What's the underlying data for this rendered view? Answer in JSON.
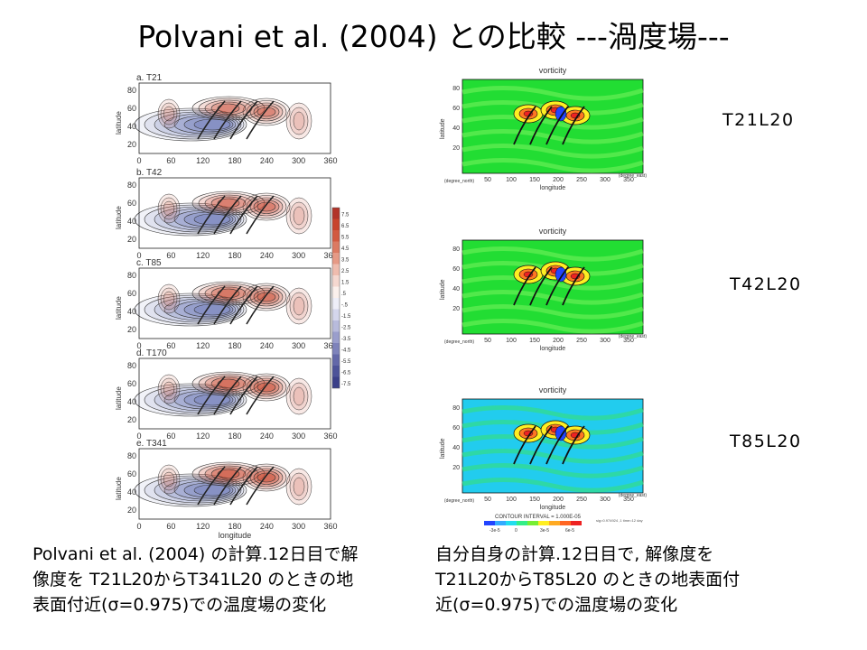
{
  "title": "Polvani et al. (2004) との比較 ---渦度場---",
  "left_figure": {
    "panels": [
      {
        "label": "a. T21"
      },
      {
        "label": "b. T42"
      },
      {
        "label": "c. T85"
      },
      {
        "label": "d. T170"
      },
      {
        "label": "e. T341"
      }
    ],
    "ylabel": "latitude",
    "xlabel": "longitude",
    "xticks": [
      "0",
      "60",
      "120",
      "180",
      "240",
      "300",
      "360"
    ],
    "yticks": [
      "80",
      "60",
      "40",
      "20"
    ],
    "colorbar_ticks": [
      "7.5",
      "6.5",
      "5.5",
      "4.5",
      "3.5",
      "2.5",
      "1.5",
      ".5",
      "-.5",
      "-1.5",
      "-2.5",
      "-3.5",
      "-4.5",
      "-5.5",
      "-6.5",
      "-7.5"
    ]
  },
  "right_figure": {
    "panels": [
      {
        "title": "vorticity",
        "resolution": "T21L20"
      },
      {
        "title": "vorticity",
        "resolution": "T42L20"
      },
      {
        "title": "vorticity",
        "resolution": "T85L20"
      }
    ],
    "ylabel": "latitude",
    "xlabel": "longitude",
    "xticks": [
      "50",
      "100",
      "150",
      "200",
      "250",
      "300",
      "350"
    ],
    "yticks": [
      "80",
      "60",
      "40",
      "20"
    ],
    "x_unit": "(degree_east)",
    "y_unit": "(degree_north)",
    "contour_interval": "CONTOUR INTERVAL = 1.000E-05",
    "legend_ticks": [
      "-3e-5",
      "0",
      "3e-5",
      "6e-5"
    ],
    "footer_left": "Jun/Sun/Mon/game 2010-11-11",
    "footer_mid": "sig=0.974924 ,1  time=12 day"
  },
  "captions": {
    "left": [
      "Polvani et al. (2004) の計算.12日目で解",
      "像度を T21L20からT341L20 のときの地",
      "表面付近(σ=0.975)での温度場の変化"
    ],
    "right": [
      "自分自身の計算.12日目で, 解像度を",
      "T21L20からT85L20 のときの地表面付",
      "近(σ=0.975)での温度場の変化"
    ]
  },
  "colors": {
    "positive": "#c8442c",
    "negative": "#4a5aa8",
    "field_green": "#22dd33",
    "field_cyan": "#22ccee"
  }
}
